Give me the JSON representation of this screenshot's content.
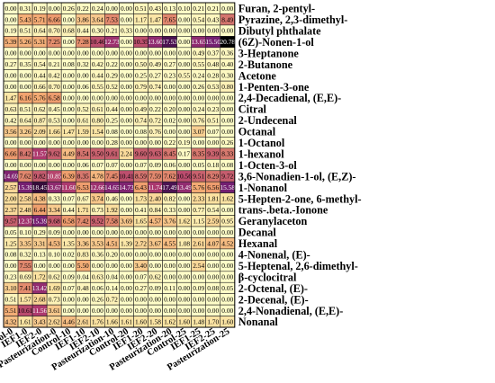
{
  "chart_data": {
    "type": "heatmap",
    "title": "",
    "xlabel": "",
    "ylabel": "",
    "columns": [
      "Control-0",
      "IEF1-0",
      "IEF2-0",
      "Pasteurization-0",
      "Control-10",
      "IEF1-10",
      "IEF2-10",
      "Pasteurization-10",
      "Control-20",
      "IEF1-20",
      "IEF2-20",
      "Pasteurization-20",
      "Control-25",
      "IEF1-25",
      "IEF2-25",
      "Pasteurization-25"
    ],
    "row_labels": [
      "Furan, 2-pentyl-",
      "Pyrazine, 2,3-dimethyl-",
      "Dibutyl phthalate",
      "(6Z)-Nonen-1-ol",
      "3-Heptanone",
      "2-Butanone",
      "Acetone",
      "1-Penten-3-one",
      "2,4-Decadienal, (E,E)-",
      "Citral",
      "2-Undecenal",
      "Octanal",
      "1-Octanol",
      "1-hexanol",
      "1-Octen-3-ol",
      "3,6-Nonadien-1-ol, (E,Z)-",
      "1-Nonanol",
      "5-Hepten-2-one, 6-methyl-",
      "trans-.beta.-Ionone",
      "Geranylaceton",
      "Decanal",
      "Hexanal",
      "4-Nonenal, (E)-",
      "5-Heptenal, 2,6-dimethyl-",
      "β-cyclocitral",
      "2-Octenal, (E)-",
      "2-Decenal, (E)-",
      "2,4-Nonadienal, (E,E)-",
      "Nonanal"
    ],
    "values": [
      [
        0.0,
        0.31,
        0.19,
        0.0,
        0.26,
        0.22,
        0.24,
        0.0,
        0.0,
        0.51,
        0.43,
        0.13,
        0.1,
        0.21,
        0.21,
        0.0
      ],
      [
        0.0,
        5.43,
        5.71,
        6.66,
        0.0,
        3.86,
        3.64,
        7.53,
        0.0,
        1.17,
        1.47,
        7.65,
        0.0,
        0.54,
        0.43,
        8.49
      ],
      [
        0.19,
        0.51,
        0.64,
        0.7,
        0.68,
        0.44,
        0.3,
        0.21,
        0.33,
        0.0,
        0.0,
        0.0,
        0.0,
        0.0,
        0.0,
        0.0
      ],
      [
        5.39,
        5.26,
        5.31,
        7.25,
        0.0,
        7.28,
        10.46,
        12.73,
        0.0,
        10.35,
        13.6,
        17.53,
        0.0,
        13.65,
        15.5,
        20.78
      ],
      [
        0.0,
        0.0,
        0.0,
        0.0,
        0.0,
        0.0,
        0.0,
        0.0,
        0.0,
        0.0,
        0.0,
        0.0,
        0.0,
        0.49,
        0.37,
        0.36
      ],
      [
        0.27,
        0.35,
        0.54,
        0.21,
        0.08,
        0.32,
        0.42,
        0.22,
        0.0,
        0.5,
        0.49,
        0.27,
        0.0,
        0.55,
        0.48,
        0.4
      ],
      [
        0.0,
        0.0,
        0.44,
        0.42,
        0.0,
        0.0,
        0.44,
        0.29,
        0.0,
        0.25,
        0.27,
        0.23,
        0.55,
        0.24,
        0.28,
        0.3
      ],
      [
        0.0,
        0.0,
        0.66,
        0.7,
        0.0,
        0.06,
        0.55,
        0.52,
        0.0,
        0.79,
        0.74,
        0.0,
        0.0,
        0.26,
        0.53,
        0.8
      ],
      [
        1.47,
        6.16,
        5.76,
        6.58,
        0.0,
        0.0,
        0.0,
        0.0,
        0.0,
        0.0,
        0.0,
        0.0,
        0.0,
        0.0,
        0.0,
        0.0
      ],
      [
        0.63,
        0.51,
        0.62,
        0.45,
        0.0,
        0.52,
        0.61,
        0.44,
        0.0,
        0.49,
        0.22,
        0.2,
        0.0,
        0.24,
        0.23,
        0.0
      ],
      [
        0.42,
        0.64,
        0.87,
        0.53,
        0.0,
        0.61,
        0.8,
        0.25,
        0.0,
        0.74,
        0.72,
        0.02,
        0.0,
        0.76,
        0.51,
        0.0
      ],
      [
        3.56,
        3.26,
        2.09,
        1.66,
        1.47,
        1.59,
        1.54,
        0.08,
        0.0,
        0.08,
        0.76,
        0.0,
        0.0,
        3.07,
        0.07,
        0.0
      ],
      [
        0.0,
        0.0,
        0.0,
        0.0,
        0.0,
        0.0,
        0.0,
        0.28,
        0.0,
        0.0,
        0.0,
        0.22,
        0.19,
        0.0,
        0.0,
        0.26
      ],
      [
        6.66,
        8.42,
        11.57,
        9.62,
        4.49,
        8.54,
        9.5,
        9.61,
        2.24,
        9.6,
        9.63,
        8.45,
        0.17,
        8.35,
        9.39,
        8.33
      ],
      [
        0.0,
        0.0,
        0.0,
        0.0,
        0.0,
        0.06,
        0.07,
        0.07,
        0.0,
        0.07,
        0.09,
        0.06,
        0.0,
        0.05,
        0.18,
        0.08
      ],
      [
        14.69,
        7.62,
        9.82,
        10.85,
        6.39,
        8.35,
        4.78,
        7.45,
        10.41,
        8.59,
        7.59,
        7.62,
        10.56,
        9.51,
        8.29,
        9.72
      ],
      [
        2.57,
        15.39,
        18.45,
        13.67,
        11.6,
        6.53,
        12.66,
        14.65,
        14.73,
        6.43,
        11.74,
        17.49,
        13.49,
        5.76,
        6.56,
        15.58
      ],
      [
        2.0,
        2.58,
        4.38,
        0.33,
        0.07,
        0.67,
        3.74,
        0.46,
        0.0,
        1.73,
        2.4,
        0.82,
        0.0,
        2.33,
        1.81,
        1.62
      ],
      [
        2.37,
        2.48,
        6.44,
        3.34,
        0.44,
        1.71,
        0.73,
        1.92,
        0.0,
        0.41,
        0.84,
        0.33,
        0.0,
        0.77,
        0.54,
        0.0
      ],
      [
        9.57,
        12.37,
        15.39,
        9.68,
        6.58,
        7.42,
        9.52,
        7.58,
        3.69,
        1.65,
        4.57,
        3.76,
        1.62,
        1.15,
        2.59,
        0.95
      ],
      [
        0.05,
        0.1,
        0.29,
        0.09,
        0.0,
        0.0,
        0.0,
        0.0,
        0.0,
        0.0,
        0.0,
        0.0,
        0.0,
        0.0,
        0.0,
        0.0
      ],
      [
        1.25,
        3.35,
        3.31,
        4.53,
        1.35,
        3.36,
        3.53,
        4.51,
        1.39,
        2.72,
        3.67,
        4.55,
        1.08,
        2.61,
        4.07,
        4.52
      ],
      [
        0.08,
        0.32,
        0.13,
        0.1,
        0.02,
        0.83,
        0.36,
        0.2,
        0.0,
        0.0,
        0.0,
        0.0,
        0.0,
        0.0,
        0.0,
        0.0
      ],
      [
        0.0,
        7.55,
        0.0,
        0.0,
        0.0,
        5.5,
        0.0,
        0.0,
        0.0,
        3.4,
        0.0,
        0.0,
        0.0,
        2.54,
        0.0,
        0.0
      ],
      [
        0.23,
        0.69,
        1.72,
        0.62,
        0.09,
        0.04,
        0.63,
        0.04,
        0.0,
        0.07,
        0.62,
        0.0,
        0.0,
        0.0,
        0.0,
        0.0
      ],
      [
        3.1,
        7.41,
        13.42,
        1.69,
        0.07,
        0.48,
        0.06,
        0.14,
        0.0,
        0.27,
        0.09,
        0.11,
        0.0,
        0.09,
        0.08,
        0.05
      ],
      [
        0.51,
        1.57,
        2.68,
        0.73,
        0.0,
        0.0,
        0.26,
        0.72,
        0.0,
        0.0,
        0.0,
        0.0,
        0.0,
        0.0,
        0.0,
        0.0
      ],
      [
        5.51,
        10.61,
        11.56,
        3.61,
        0.0,
        0.0,
        0.0,
        0.0,
        0.0,
        0.0,
        0.0,
        0.0,
        0.0,
        0.0,
        0.0,
        0.0
      ],
      [
        4.32,
        1.61,
        3.43,
        2.62,
        4.46,
        2.61,
        1.76,
        1.66,
        1.61,
        1.6,
        1.58,
        1.62,
        1.6,
        1.48,
        1.7,
        1.6
      ]
    ],
    "colors": {
      "low": "#fefdc8",
      "mid_low": "#fbe3a2",
      "mid": "#f2a36e",
      "high": "#b03a6e",
      "higher": "#6a1a72",
      "max": "#000000",
      "grid": "#222222"
    }
  }
}
